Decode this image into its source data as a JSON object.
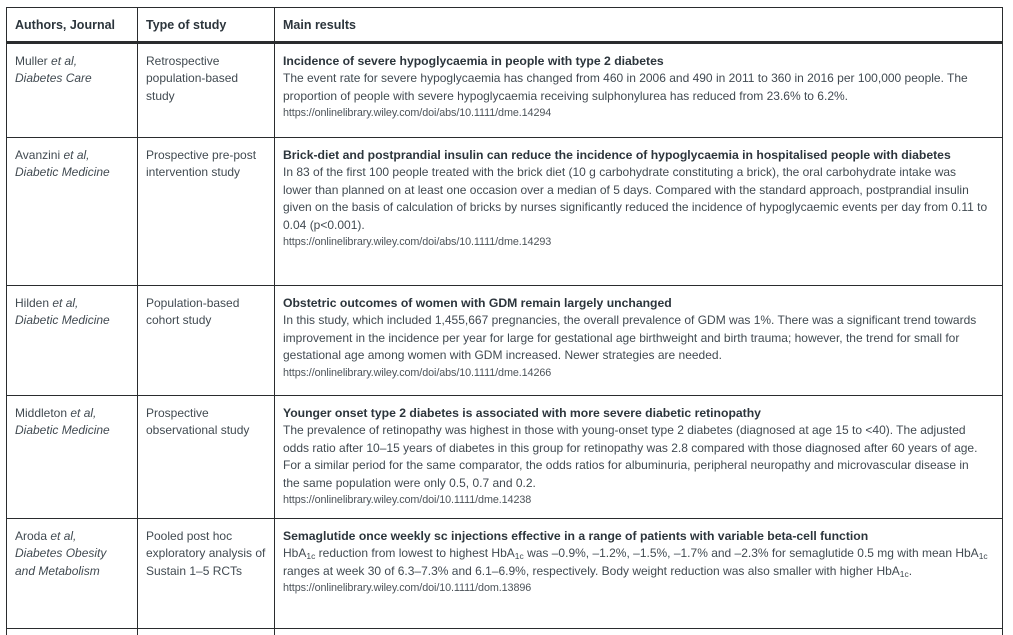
{
  "colors": {
    "border": "#2a2c2e",
    "heading_text": "#2c353c",
    "body_text": "#414a51",
    "url_text": "#4d545a",
    "background": "#ffffff"
  },
  "table": {
    "headers": [
      "Authors, Journal",
      "Type of study",
      "Main results"
    ],
    "rows": [
      {
        "author_name": "Muller",
        "author_etal": "et al,",
        "journal": "Diabetes Care",
        "study_type": "Retrospective population-based study",
        "result_title": "Incidence of severe hypoglycaemia in people with type 2 diabetes",
        "result_body": "The event rate for severe hypoglycaemia has changed from 460 in 2006 and 490 in 2011 to 360 in 2016 per 100,000 people. The proportion of people with severe hypoglycaemia receiving sulphonylurea has reduced from 23.6% to 6.2%.",
        "url": "https://onlinelibrary.wiley.com/doi/abs/10.1111/dme.14294"
      },
      {
        "author_name": "Avanzini",
        "author_etal": "et al,",
        "journal": "Diabetic Medicine",
        "study_type": "Prospective pre-post intervention study",
        "result_title": "Brick-diet and postprandial insulin can reduce the incidence of hypoglycaemia in hospitalised people with diabetes",
        "result_body": "In 83 of the first 100 people treated with the brick diet (10 g carbohydrate constituting a brick), the oral carbohydrate intake was lower than planned on at least one occasion over a median of 5 days. Compared with the standard approach, postprandial insulin given on the basis of calculation of bricks by nurses significantly reduced the incidence of hypoglycaemic events per day from 0.11 to 0.04 (p<0.001).",
        "url": "https://onlinelibrary.wiley.com/doi/abs/10.1111/dme.14293"
      },
      {
        "author_name": "Hilden",
        "author_etal": "et al,",
        "journal": "Diabetic Medicine",
        "study_type": "Population-based cohort study",
        "result_title": "Obstetric outcomes of women with GDM remain largely unchanged",
        "result_body": "In this study, which included 1,455,667 pregnancies, the overall prevalence of GDM was 1%. There was a significant trend towards improvement in the incidence per year for large for gestational age birthweight and birth trauma; however, the trend for small for gestational age among women with GDM increased. Newer strategies are needed.",
        "url": "https://onlinelibrary.wiley.com/doi/abs/10.1111/dme.14266"
      },
      {
        "author_name": "Middleton",
        "author_etal": "et al,",
        "journal": "Diabetic Medicine",
        "study_type": "Prospective observational study",
        "result_title": "Younger onset type 2 diabetes is associated with more severe diabetic retinopathy",
        "result_body": "The prevalence of retinopathy was highest in those with young-onset type 2 diabetes (diagnosed at age 15 to <40). The adjusted odds ratio after 10–15 years of diabetes in this group for retinopathy was 2.8 compared with those diagnosed after 60 years of age. For a similar period for the same comparator, the odds ratios for albuminuria, peripheral neuropathy and microvascular disease in the same population were only 0.5, 0.7 and 0.2.",
        "url": "https://onlinelibrary.wiley.com/doi/10.1111/dme.14238"
      },
      {
        "author_name": "Aroda",
        "author_etal": "et al,",
        "journal": "Diabetes Obesity and Metabolism",
        "study_type": "Pooled post hoc exploratory analysis of Sustain 1–5 RCTs",
        "result_title": "Semaglutide once weekly sc injections effective in a range of patients with variable beta-cell function",
        "result_body": "HbA~1c~ reduction from lowest to highest HbA~1c~ was –0.9%, –1.2%, –1.5%, –1.7% and –2.3% for semaglutide 0.5 mg with mean HbA~1c~ ranges at week 30 of 6.3–7.3% and 6.1–6.9%, respectively. Body weight reduction was also smaller with higher HbA~1c~.",
        "url": "https://onlinelibrary.wiley.com/doi/10.1111/dom.13896"
      }
    ],
    "partial_row_visible": true
  }
}
